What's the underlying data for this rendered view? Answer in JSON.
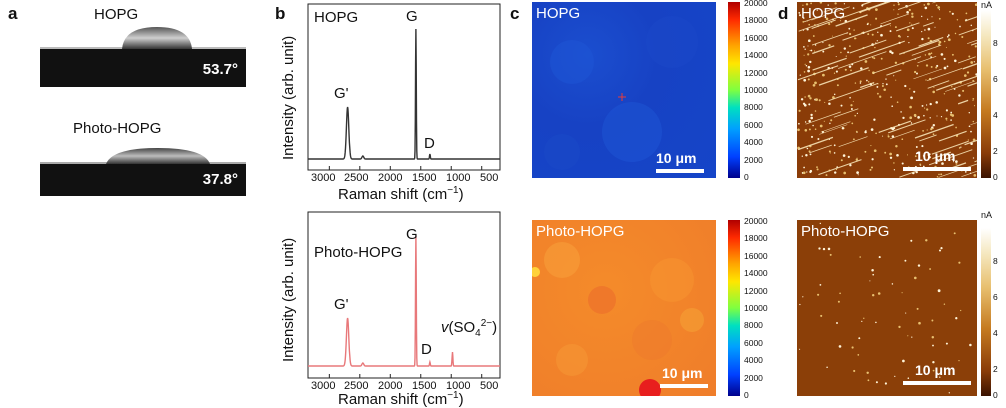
{
  "panels": {
    "a": {
      "letter": "a",
      "samples": [
        {
          "name": "HOPG",
          "contact_angle": "53.7°"
        },
        {
          "name": "Photo-HOPG",
          "contact_angle": "37.8°"
        }
      ]
    },
    "b": {
      "letter": "b",
      "spectra": [
        {
          "title": "HOPG",
          "color": "#333333",
          "ylabel": "Intensity (arb. unit)",
          "xlabel": "Raman shift (cm",
          "xlabel_sup": "−1",
          "xlabel_end": ")",
          "xticks": [
            "3000",
            "2500",
            "2000",
            "1500",
            "1000",
            "500"
          ],
          "peaks": [
            {
              "label": "G'",
              "x": 2700
            },
            {
              "label": "G",
              "x": 1580
            },
            {
              "label": "D",
              "x": 1350
            }
          ]
        },
        {
          "title": "Photo-HOPG",
          "color": "#e8787a",
          "ylabel": "Intensity (arb. unit)",
          "xlabel": "Raman shift (cm",
          "xlabel_sup": "−1",
          "xlabel_end": ")",
          "xticks": [
            "3000",
            "2500",
            "2000",
            "1500",
            "1000",
            "500"
          ],
          "peaks": [
            {
              "label": "G'",
              "x": 2700
            },
            {
              "label": "G",
              "x": 1580
            },
            {
              "label": "D",
              "x": 1350
            },
            {
              "label_prefix": "v",
              "label_mid": "(SO",
              "label_sub": "4",
              "label_sup": "2−",
              "label_end": ")",
              "x": 980
            }
          ]
        }
      ]
    },
    "c": {
      "letter": "c",
      "maps": [
        {
          "name": "HOPG",
          "scale": "10 μm",
          "colorbar_ticks": [
            "20000",
            "18000",
            "16000",
            "14000",
            "12000",
            "10000",
            "8000",
            "6000",
            "4000",
            "2000",
            "0"
          ]
        },
        {
          "name": "Photo-HOPG",
          "scale": "10 μm",
          "colorbar_ticks": [
            "20000",
            "18000",
            "16000",
            "14000",
            "12000",
            "10000",
            "8000",
            "6000",
            "4000",
            "2000",
            "0"
          ]
        }
      ]
    },
    "d": {
      "letter": "d",
      "maps": [
        {
          "name": "HOPG",
          "scale": "10 μm",
          "unit": "nA",
          "colorbar_ticks": [
            "8",
            "6",
            "4",
            "2",
            "0"
          ]
        },
        {
          "name": "Photo-HOPG",
          "scale": "10 μm",
          "unit": "nA",
          "colorbar_ticks": [
            "8",
            "6",
            "4",
            "2",
            "0"
          ]
        }
      ]
    }
  }
}
